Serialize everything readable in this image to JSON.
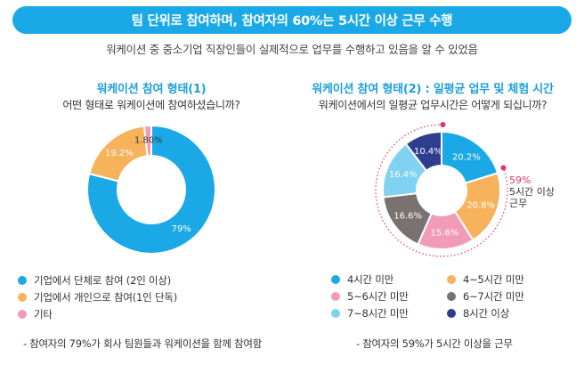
{
  "header": {
    "banner": "팀 단위로 참여하며, 참여자의 60%는 5시간 이상 근무 수행",
    "subtitle": "워케이션 중 중소기업 직장인들이 실제적으로 업무를 수행하고 있음을 알 수 있었음"
  },
  "chart_data": [
    {
      "type": "pie",
      "title": "워케이션 참여 형태(1)",
      "subtitle": "어떤 형태로 워케이션에 참여하셨습니까?",
      "categories": [
        "기업에서 단체로 참여 (2인 이상)",
        "기업에서 개인으로 참여(1인 단독)",
        "기타"
      ],
      "values": [
        79,
        19.2,
        1.8
      ],
      "value_labels": [
        "79%",
        "19.2%",
        "1.80%"
      ],
      "colors": [
        "#1aa9e6",
        "#f7b25c",
        "#f29bb8"
      ],
      "legend_position": "bottom",
      "note": "- 참여자의 79%가 회사 팀원들과 워케이션을 함께 참여함"
    },
    {
      "type": "pie",
      "title": "워케이션 참여 형태(2) : 일평균 업무 및 체험 시간",
      "subtitle": "워케이션에서의 일평균 업무시간은 어떻게 되십니까?",
      "categories": [
        "4시간 미만",
        "4~5시간 미만",
        "5~6시간 미만",
        "6~7시간 미만",
        "7~8시간 미만",
        "8시간 이상"
      ],
      "values": [
        20.2,
        20.8,
        15.6,
        16.6,
        16.4,
        10.4
      ],
      "value_labels": [
        "20.2%",
        "20.8%",
        "15.6%",
        "16.6%",
        "16.4%",
        "10.4%"
      ],
      "colors": [
        "#1aa9e6",
        "#f7b25c",
        "#f29bb8",
        "#7a7171",
        "#7fd2f2",
        "#2e3d8f"
      ],
      "legend_position": "bottom",
      "callout": {
        "pct": "59%",
        "line1": "5시간 이상",
        "line2": "근무"
      },
      "note": "- 참여자의 59%가 5시간 이상을 근무"
    }
  ]
}
